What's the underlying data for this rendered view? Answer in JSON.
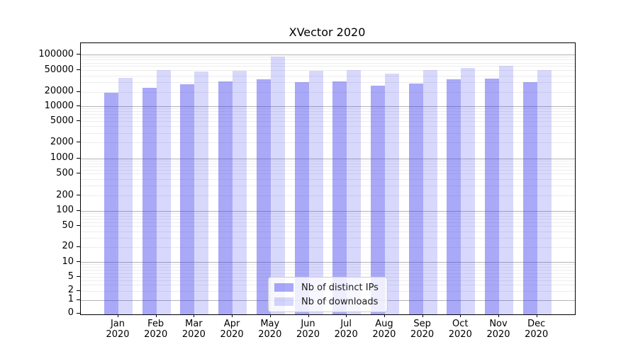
{
  "title": "XVector 2020",
  "chart_data": {
    "type": "bar",
    "title": "XVector 2020",
    "categories": [
      "Jan 2020",
      "Feb 2020",
      "Mar 2020",
      "Apr 2020",
      "May 2020",
      "Jun 2020",
      "Jul 2020",
      "Aug 2020",
      "Sep 2020",
      "Oct 2020",
      "Nov 2020",
      "Dec 2020"
    ],
    "series": [
      {
        "name": "Nb of distinct IPs",
        "color_key": "ips",
        "values": [
          19000,
          23500,
          28000,
          31500,
          34000,
          30500,
          31500,
          26000,
          28500,
          34000,
          35000,
          30000
        ]
      },
      {
        "name": "Nb of downloads",
        "color_key": "downloads",
        "values": [
          36500,
          51000,
          48000,
          49500,
          92000,
          48500,
          51000,
          43000,
          50500,
          55000,
          61000,
          50000
        ]
      }
    ],
    "xlabel": "",
    "ylabel": "",
    "yscale": "symlog",
    "ylim": [
      0,
      150000
    ],
    "yticks": [
      {
        "value": 0,
        "label": "0"
      },
      {
        "value": 1,
        "label": "1"
      },
      {
        "value": 2,
        "label": "2"
      },
      {
        "value": 5,
        "label": "5"
      },
      {
        "value": 10,
        "label": "10"
      },
      {
        "value": 20,
        "label": "20"
      },
      {
        "value": 50,
        "label": "50"
      },
      {
        "value": 100,
        "label": "100"
      },
      {
        "value": 200,
        "label": "200"
      },
      {
        "value": 500,
        "label": "500"
      },
      {
        "value": 1000,
        "label": "1000"
      },
      {
        "value": 2000,
        "label": "2000"
      },
      {
        "value": 5000,
        "label": "5000"
      },
      {
        "value": 10000,
        "label": "10000"
      },
      {
        "value": 20000,
        "label": "20000"
      },
      {
        "value": 50000,
        "label": "50000"
      },
      {
        "value": 100000,
        "label": "100000"
      }
    ],
    "grid": "both",
    "legend_position": "lower center",
    "colors": {
      "ips": "rgba(60,60,240,0.44)",
      "downloads": "rgba(60,60,240,0.20)",
      "grid_major": "#b3b3b3",
      "grid_minor": "#ededed",
      "axis": "#000000"
    }
  }
}
